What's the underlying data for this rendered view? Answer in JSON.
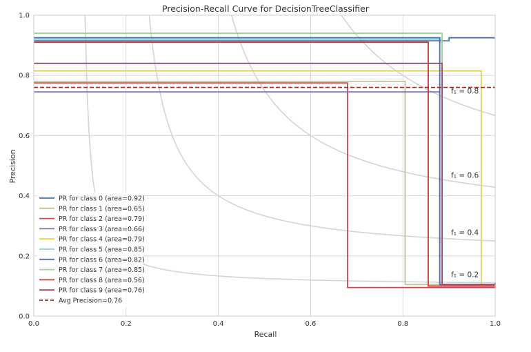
{
  "chart_data": {
    "type": "line",
    "title": "Precision-Recall Curve for DecisionTreeClassifier",
    "xlabel": "Recall",
    "ylabel": "Precision",
    "xlim": [
      0,
      1
    ],
    "ylim": [
      0,
      1
    ],
    "grid": true,
    "legend_position": "lower-left",
    "x_ticks": [
      "0.0",
      "0.2",
      "0.4",
      "0.6",
      "0.8",
      "1.0"
    ],
    "y_ticks": [
      "0.0",
      "0.2",
      "0.4",
      "0.6",
      "0.8",
      "1.0"
    ],
    "iso_f1": [
      {
        "f": 0.2,
        "label": "f₁ = 0.2",
        "label_x": 0.9,
        "label_y": 0.13
      },
      {
        "f": 0.4,
        "label": "f₁ = 0.4",
        "label_x": 0.9,
        "label_y": 0.27
      },
      {
        "f": 0.6,
        "label": "f₁ = 0.6",
        "label_x": 0.9,
        "label_y": 0.46
      },
      {
        "f": 0.8,
        "label": "f₁ = 0.8",
        "label_x": 0.9,
        "label_y": 0.74
      }
    ],
    "series": [
      {
        "name": "PR for class 0 (area=0.92)",
        "color": "#4c72b0",
        "x": [
          0,
          0.9,
          0.9,
          1.0
        ],
        "y": [
          0.915,
          0.915,
          0.925,
          0.925
        ]
      },
      {
        "name": "PR for class 1 (area=0.65)",
        "color": "#c9c28f",
        "x": [
          0,
          0.805,
          0.805,
          1.0,
          1.0
        ],
        "y": [
          0.78,
          0.78,
          0.105,
          0.105,
          0.11
        ]
      },
      {
        "name": "PR for class 2 (area=0.79)",
        "color": "#c44e52",
        "x": [
          0,
          0.68,
          0.68,
          1.0,
          1.0
        ],
        "y": [
          0.775,
          0.775,
          0.095,
          0.095,
          0.1
        ]
      },
      {
        "name": "PR for class 3 (area=0.66)",
        "color": "#8172b2",
        "x": [
          0,
          0.88,
          0.88,
          1.0,
          1.0
        ],
        "y": [
          0.745,
          0.745,
          0.105,
          0.105,
          0.11
        ]
      },
      {
        "name": "PR for class 4 (area=0.79)",
        "color": "#e5d44d",
        "x": [
          0,
          0.97,
          0.97,
          1.0,
          1.0
        ],
        "y": [
          0.815,
          0.815,
          0.1,
          0.1,
          0.11
        ]
      },
      {
        "name": "PR for class 5 (area=0.85)",
        "color": "#8fcadb",
        "x": [
          0,
          0.885,
          0.885,
          1.0,
          1.0
        ],
        "y": [
          0.92,
          0.92,
          0.105,
          0.105,
          0.11
        ]
      },
      {
        "name": "PR for class 6 (area=0.82)",
        "color": "#4c72b0",
        "x": [
          0,
          0.88,
          0.88,
          1.0,
          1.0
        ],
        "y": [
          0.925,
          0.925,
          0.105,
          0.105,
          0.11
        ]
      },
      {
        "name": "PR for class 7 (area=0.85)",
        "color": "#9ed19c",
        "x": [
          0,
          0.885,
          0.885,
          1.0,
          1.0
        ],
        "y": [
          0.94,
          0.94,
          0.105,
          0.105,
          0.11
        ]
      },
      {
        "name": "PR for class 8 (area=0.56)",
        "color": "#c0392b",
        "x": [
          0,
          0.855,
          0.855,
          1.0,
          1.0
        ],
        "y": [
          0.91,
          0.91,
          0.1,
          0.1,
          0.1
        ]
      },
      {
        "name": "PR for class 9 (area=0.76)",
        "color": "#a0457a",
        "x": [
          0,
          0.885,
          0.885,
          1.0,
          1.0
        ],
        "y": [
          0.84,
          0.84,
          0.105,
          0.105,
          0.11
        ]
      }
    ],
    "avg_precision": {
      "name": "Avg Precision=0.76",
      "value": 0.76,
      "color": "#a62628"
    }
  }
}
